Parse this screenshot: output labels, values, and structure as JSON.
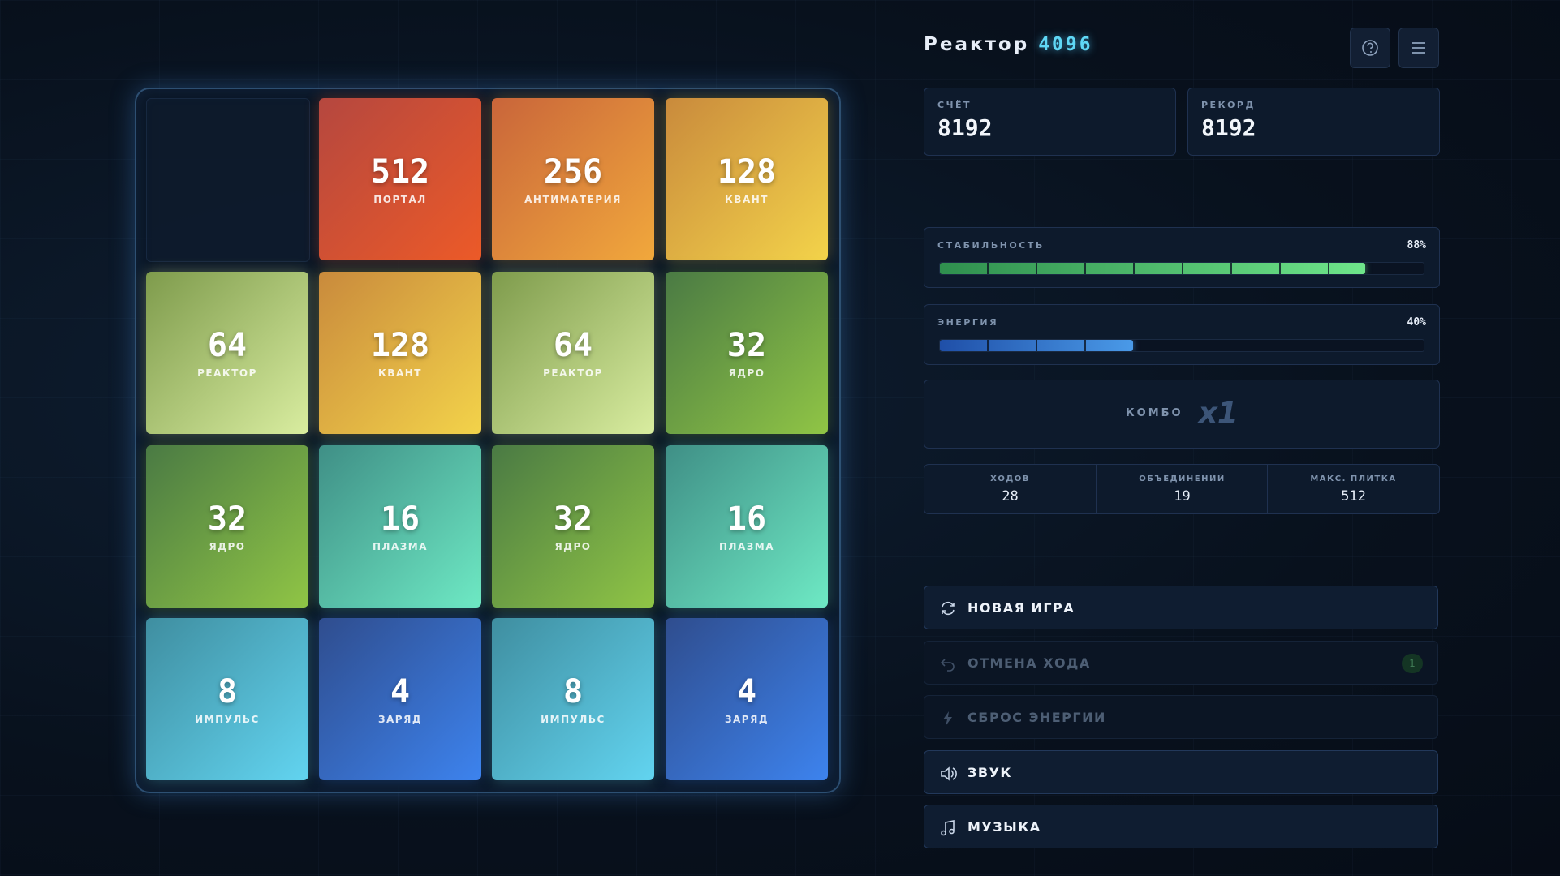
{
  "header": {
    "title": "Реактор",
    "title_accent": "4096"
  },
  "scores": [
    {
      "label": "СЧЁТ",
      "value": 8192
    },
    {
      "label": "РЕКОРД",
      "value": 8192
    }
  ],
  "board": {
    "tiles": [
      null,
      {
        "value": 512,
        "label": "ПОРТАЛ",
        "colors": [
          "#b5473f",
          "#ec5a28"
        ]
      },
      {
        "value": 256,
        "label": "АНТИМАТЕРИЯ",
        "colors": [
          "#c9653a",
          "#f1a83c"
        ]
      },
      {
        "value": 128,
        "label": "КВАНТ",
        "colors": [
          "#c98a3c",
          "#f3d34a"
        ]
      },
      {
        "value": 64,
        "label": "РЕАКТОР",
        "colors": [
          "#7e9b4c",
          "#d9eda0"
        ]
      },
      {
        "value": 128,
        "label": "КВАНТ",
        "colors": [
          "#c98a3c",
          "#f3d34a"
        ]
      },
      {
        "value": 64,
        "label": "РЕАКТОР",
        "colors": [
          "#7e9b4c",
          "#d9eda0"
        ]
      },
      {
        "value": 32,
        "label": "ЯДРО",
        "colors": [
          "#4a7a44",
          "#90c545"
        ]
      },
      {
        "value": 32,
        "label": "ЯДРО",
        "colors": [
          "#4a7a44",
          "#90c545"
        ]
      },
      {
        "value": 16,
        "label": "ПЛАЗМА",
        "colors": [
          "#3f8f86",
          "#6ee9c4"
        ]
      },
      {
        "value": 32,
        "label": "ЯДРО",
        "colors": [
          "#4a7a44",
          "#90c545"
        ]
      },
      {
        "value": 16,
        "label": "ПЛАЗМА",
        "colors": [
          "#3f8f86",
          "#6ee9c4"
        ]
      },
      {
        "value": 8,
        "label": "ИМПУЛЬС",
        "colors": [
          "#3f8ea0",
          "#62d4f0"
        ]
      },
      {
        "value": 4,
        "label": "ЗАРЯД",
        "colors": [
          "#2f4d8e",
          "#3d83ee"
        ]
      },
      {
        "value": 8,
        "label": "ИМПУЛЬС",
        "colors": [
          "#3f8ea0",
          "#62d4f0"
        ]
      },
      {
        "value": 4,
        "label": "ЗАРЯД",
        "colors": [
          "#2f4d8e",
          "#3d83ee"
        ]
      }
    ]
  },
  "meters": [
    {
      "label": "СТАБИЛЬНОСТЬ",
      "value": 88,
      "value_label": "88%",
      "colors": [
        "#2f8f4e",
        "#6ee58a"
      ]
    },
    {
      "label": "ЭНЕРГИЯ",
      "value": 40,
      "value_label": "40%",
      "colors": [
        "#1f4fa8",
        "#4a9ae8"
      ]
    }
  ],
  "combo": {
    "label": "КОМБО",
    "value": "x1"
  },
  "stats": [
    {
      "label": "ХОДОВ",
      "value": 28
    },
    {
      "label": "ОБЪЕДИНЕНИЙ",
      "value": 19
    },
    {
      "label": "МАКС. ПЛИТКА",
      "value": 512
    }
  ],
  "buttons": [
    {
      "label": "НОВАЯ ИГРА",
      "enabled": true
    },
    {
      "label": "ОТМЕНА ХОДА",
      "enabled": false,
      "badge": 1
    },
    {
      "label": "СБРОС ЭНЕРГИИ",
      "enabled": false
    },
    {
      "label": "ЗВУК",
      "enabled": true
    },
    {
      "label": "МУЗЫКА",
      "enabled": true
    }
  ]
}
